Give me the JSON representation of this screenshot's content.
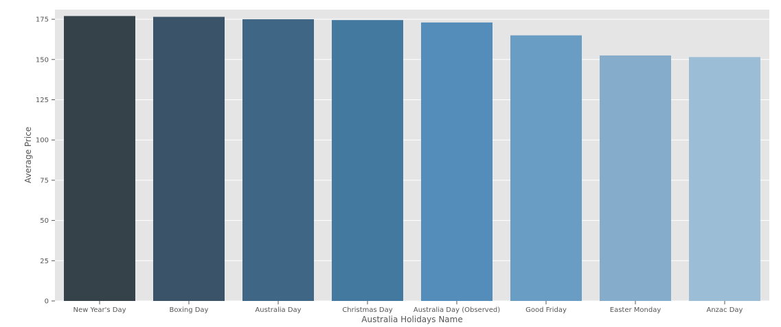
{
  "chart_data": {
    "type": "bar",
    "title": "",
    "xlabel": "Australia Holidays Name",
    "ylabel": "Average Price",
    "categories": [
      "New Year's Day",
      "Boxing Day",
      "Australia Day",
      "Christmas Day",
      "Australia Day (Observed)",
      "Good Friday",
      "Easter Monday",
      "Anzac Day"
    ],
    "values": [
      177,
      176.5,
      175,
      174.5,
      173,
      165,
      152.5,
      151.5
    ],
    "ylim": [
      0,
      181
    ],
    "yticks": [
      0,
      25,
      50,
      75,
      100,
      125,
      150,
      175
    ],
    "grid": true,
    "legend": "none",
    "colors": [
      "#35424a",
      "#3a5368",
      "#3f6684",
      "#43799f",
      "#558dba",
      "#699dc3",
      "#85acca",
      "#9bbdd5"
    ],
    "plot_background": "#e5e5e5",
    "grid_color": "#ffffff"
  }
}
